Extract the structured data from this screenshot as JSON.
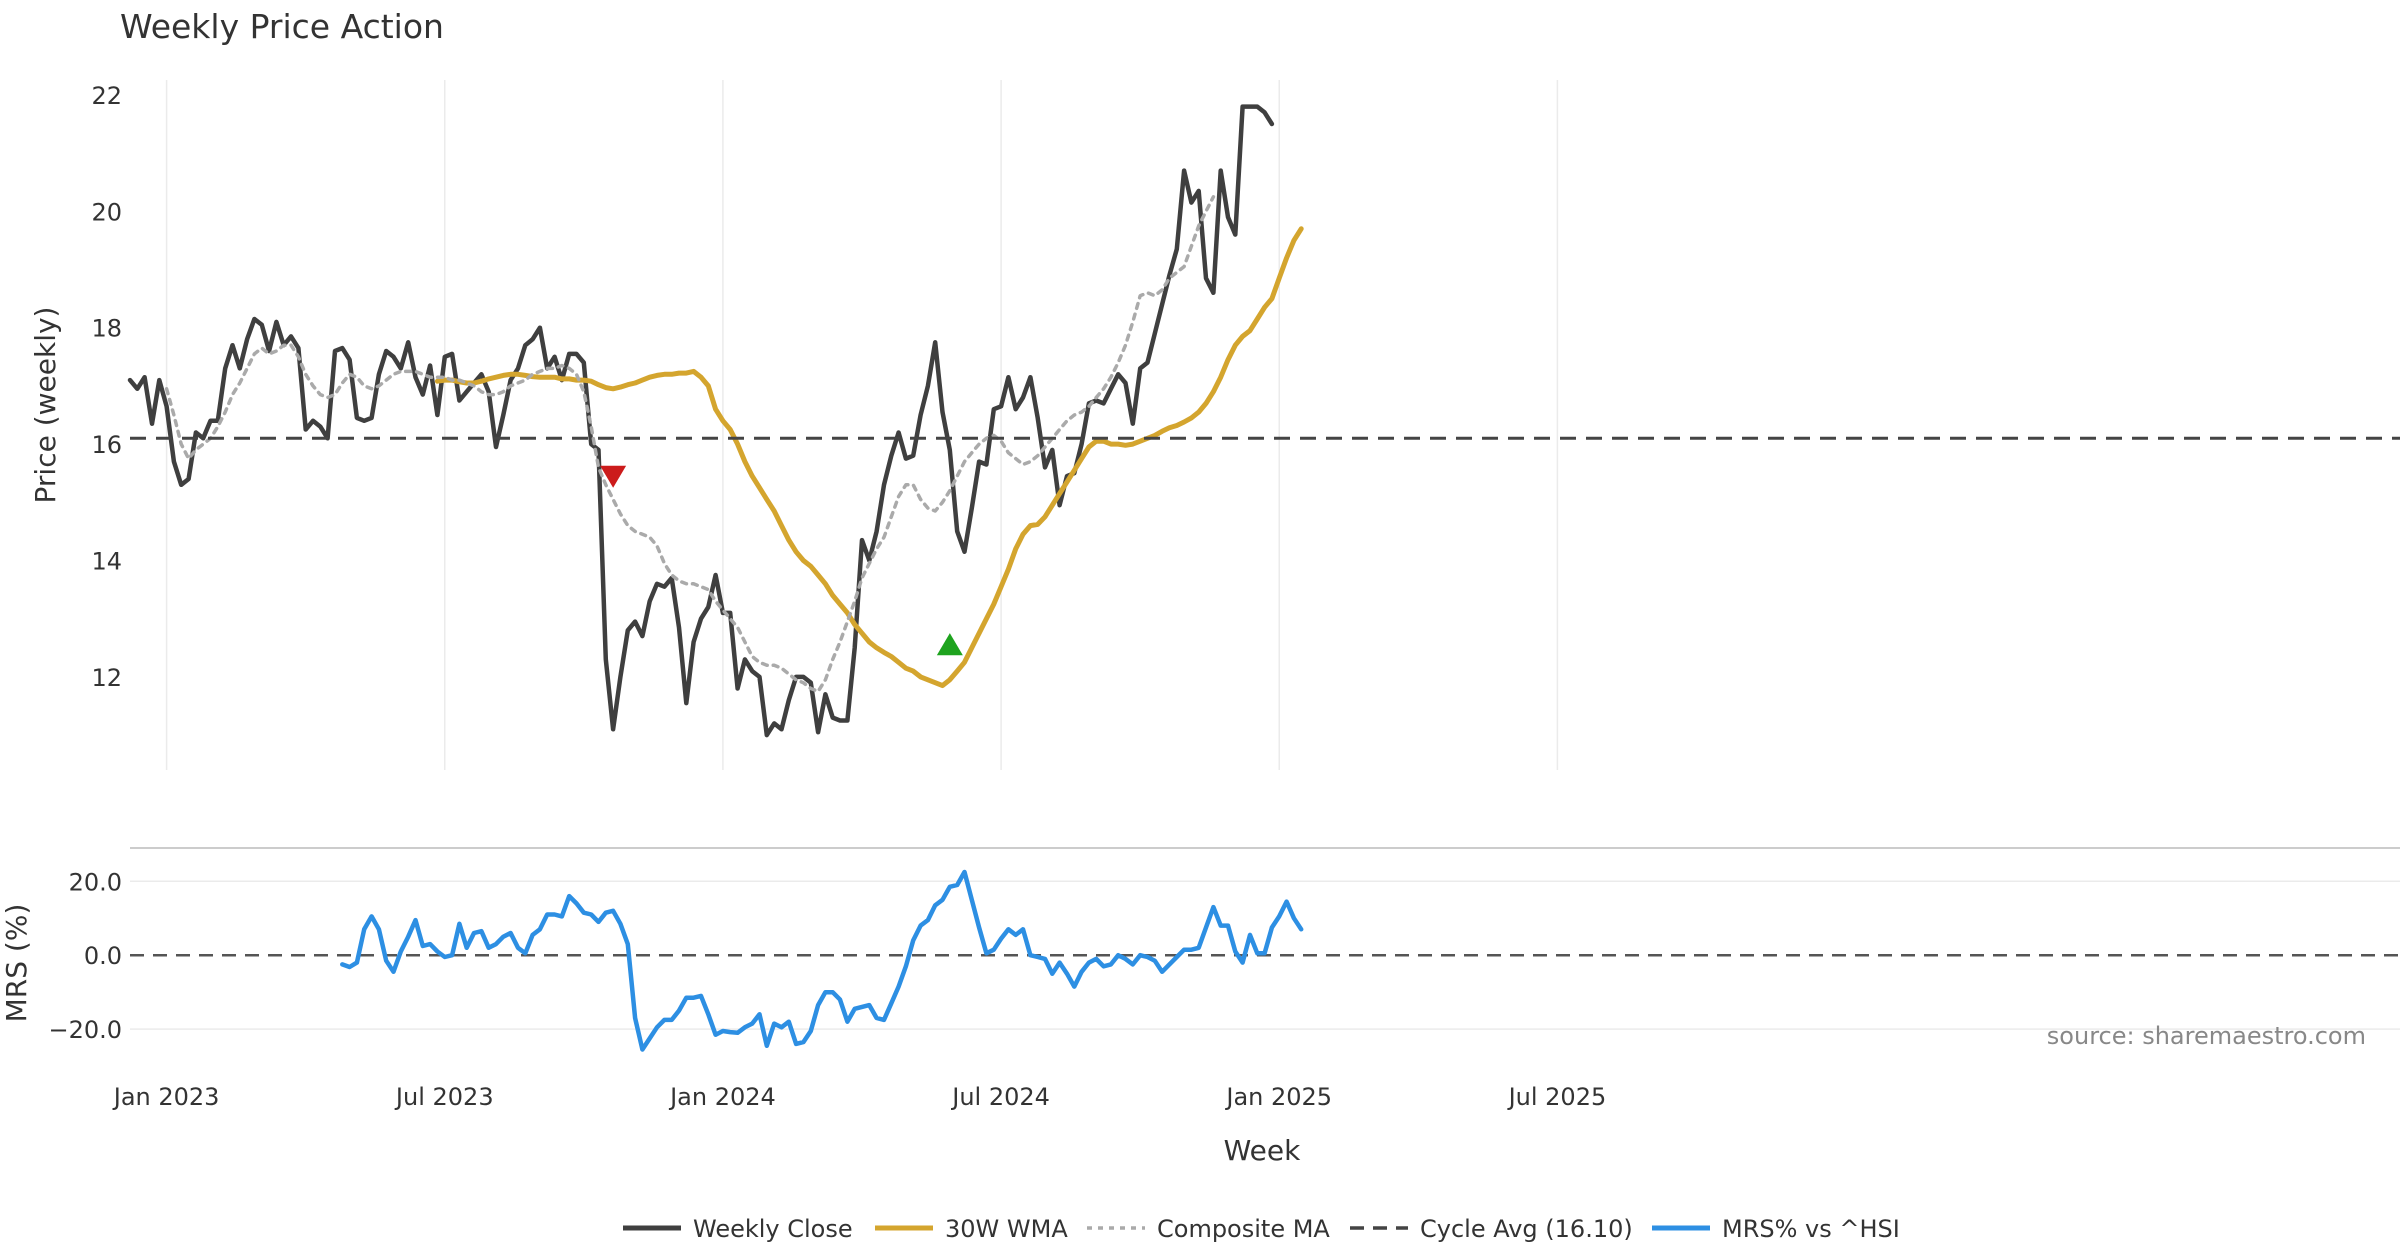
{
  "chart_data": [
    {
      "type": "line",
      "title": "Weekly Price Action",
      "ylabel": "Price (weekly)",
      "ylim": [
        10.4,
        22.6
      ],
      "yticks": [
        12,
        14,
        16,
        18,
        20,
        22
      ],
      "xlabel_ticks": [
        "Jan 2023",
        "Jul 2023",
        "Jan 2024",
        "Jul 2024",
        "Jan 2025",
        "Jul 2025"
      ],
      "grid": "vertical",
      "series": [
        {
          "name": "Weekly Close",
          "color": "#3f3f3f",
          "style": "solid",
          "values": [
            17.1,
            16.95,
            17.15,
            16.35,
            17.1,
            16.65,
            15.7,
            15.3,
            15.4,
            16.2,
            16.1,
            16.4,
            16.4,
            17.3,
            17.7,
            17.3,
            17.8,
            18.15,
            18.05,
            17.6,
            18.1,
            17.7,
            17.85,
            17.65,
            16.25,
            16.4,
            16.3,
            16.1,
            17.6,
            17.65,
            17.45,
            16.45,
            16.4,
            16.45,
            17.2,
            17.6,
            17.5,
            17.3,
            17.75,
            17.15,
            16.85,
            17.35,
            16.5,
            17.5,
            17.55,
            16.75,
            16.9,
            17.05,
            17.2,
            16.9,
            15.95,
            16.5,
            17.1,
            17.3,
            17.7,
            17.8,
            18.0,
            17.3,
            17.5,
            17.1,
            17.55,
            17.55,
            17.4,
            16.0,
            15.9,
            12.3,
            11.1,
            12.0,
            12.8,
            12.95,
            12.7,
            13.3,
            13.6,
            13.55,
            13.7,
            12.85,
            11.55,
            12.6,
            13.0,
            13.2,
            13.75,
            13.1,
            13.1,
            11.8,
            12.3,
            12.1,
            12.0,
            11.0,
            11.2,
            11.1,
            11.6,
            12.0,
            12.0,
            11.9,
            11.05,
            11.7,
            11.3,
            11.25,
            11.25,
            12.5,
            14.35,
            14.0,
            14.5,
            15.3,
            15.8,
            16.2,
            15.75,
            15.8,
            16.5,
            17.0,
            17.75,
            16.55,
            15.9,
            14.5,
            14.15,
            14.9,
            15.7,
            15.65,
            16.6,
            16.65,
            17.15,
            16.6,
            16.8,
            17.15,
            16.45,
            15.6,
            15.9,
            14.95,
            15.45,
            15.5,
            16.0,
            16.7,
            16.75,
            16.7,
            16.95,
            17.2,
            17.05,
            16.35,
            17.3,
            17.4,
            17.9,
            18.4,
            18.9,
            19.35,
            20.7,
            20.15,
            20.35,
            18.85,
            18.6,
            20.7,
            19.9,
            19.6,
            21.8,
            21.8,
            21.8,
            21.7,
            21.5
          ]
        },
        {
          "name": "30W WMA",
          "color": "#d4a52e",
          "style": "solid",
          "start_index": 42,
          "values": [
            17.08,
            17.1,
            17.1,
            17.07,
            17.05,
            17.05,
            17.08,
            17.12,
            17.15,
            17.18,
            17.2,
            17.2,
            17.18,
            17.16,
            17.15,
            17.15,
            17.15,
            17.12,
            17.12,
            17.1,
            17.1,
            17.08,
            17.02,
            16.97,
            16.95,
            16.98,
            17.02,
            17.05,
            17.1,
            17.15,
            17.18,
            17.2,
            17.2,
            17.22,
            17.22,
            17.25,
            17.15,
            17.0,
            16.6,
            16.4,
            16.25,
            16.0,
            15.7,
            15.45,
            15.25,
            15.05,
            14.85,
            14.6,
            14.35,
            14.15,
            14.0,
            13.9,
            13.75,
            13.6,
            13.4,
            13.25,
            13.1,
            12.9,
            12.75,
            12.6,
            12.5,
            12.42,
            12.35,
            12.25,
            12.15,
            12.1,
            12.0,
            11.95,
            11.9,
            11.85,
            11.95,
            12.1,
            12.25,
            12.5,
            12.75,
            13.0,
            13.25,
            13.55,
            13.85,
            14.2,
            14.45,
            14.6,
            14.62,
            14.75,
            14.95,
            15.15,
            15.35,
            15.55,
            15.75,
            15.95,
            16.05,
            16.05,
            16.0,
            16.0,
            15.98,
            16.0,
            16.05,
            16.1,
            16.15,
            16.22,
            16.28,
            16.32,
            16.38,
            16.45,
            16.55,
            16.7,
            16.9,
            17.15,
            17.45,
            17.7,
            17.85,
            17.95,
            18.15,
            18.35,
            18.5,
            18.85,
            19.2,
            19.5,
            19.7
          ]
        },
        {
          "name": "Composite MA",
          "color": "#aaaaaa",
          "style": "dotted",
          "start_index": 5,
          "values": [
            16.95,
            16.5,
            16.0,
            15.75,
            15.9,
            16.0,
            16.1,
            16.3,
            16.55,
            16.85,
            17.05,
            17.3,
            17.55,
            17.65,
            17.55,
            17.6,
            17.7,
            17.7,
            17.5,
            17.2,
            17.0,
            16.85,
            16.8,
            16.85,
            17.05,
            17.2,
            17.15,
            17.0,
            16.95,
            17.0,
            17.1,
            17.2,
            17.25,
            17.25,
            17.25,
            17.2,
            17.15,
            17.15,
            17.15,
            17.1,
            17.1,
            17.05,
            17.0,
            16.9,
            16.85,
            16.85,
            16.9,
            17.0,
            17.05,
            17.1,
            17.2,
            17.25,
            17.3,
            17.3,
            17.35,
            17.3,
            17.2,
            16.9,
            16.3,
            15.6,
            15.3,
            15.05,
            14.8,
            14.6,
            14.5,
            14.45,
            14.4,
            14.25,
            13.95,
            13.75,
            13.65,
            13.6,
            13.6,
            13.55,
            13.5,
            13.3,
            13.15,
            13.0,
            12.85,
            12.6,
            12.35,
            12.25,
            12.2,
            12.2,
            12.15,
            12.05,
            11.95,
            11.9,
            11.8,
            11.75,
            11.95,
            12.3,
            12.6,
            12.95,
            13.3,
            13.7,
            13.95,
            14.2,
            14.4,
            14.75,
            15.1,
            15.3,
            15.3,
            15.05,
            14.9,
            14.85,
            15.0,
            15.2,
            15.45,
            15.7,
            15.85,
            16.0,
            16.1,
            16.15,
            16.05,
            15.85,
            15.75,
            15.65,
            15.7,
            15.8,
            15.95,
            16.1,
            16.25,
            16.4,
            16.5,
            16.55,
            16.65,
            16.8,
            16.95,
            17.15,
            17.4,
            17.7,
            18.1,
            18.55,
            18.6,
            18.55,
            18.65,
            18.85,
            18.95,
            19.05,
            19.4,
            19.75,
            20.0,
            20.25
          ]
        },
        {
          "name": "Cycle Avg (16.10)",
          "color": "#444444",
          "style": "dashed",
          "constant": 16.1
        }
      ],
      "markers": [
        {
          "type": "down-triangle",
          "color": "#cc1b1b",
          "index": 66,
          "y": 15.45
        },
        {
          "type": "up-triangle",
          "color": "#1ea31e",
          "index": 112,
          "y": 12.55
        }
      ]
    },
    {
      "type": "line",
      "ylabel": "MRS (%)",
      "ylim": [
        -27,
        29
      ],
      "yticks": [
        20.0,
        0.0,
        -20.0
      ],
      "ytick_labels": [
        "20.0",
        "0.0",
        "−20.0"
      ],
      "xlabel": "Week",
      "zero_line": true,
      "series": [
        {
          "name": "MRS% vs ^HSI",
          "color": "#2d8fe3",
          "style": "solid",
          "start_index": 29,
          "values": [
            -2.5,
            -3.2,
            -2.0,
            7.0,
            10.5,
            7.0,
            -1.5,
            -4.5,
            1.0,
            5.0,
            9.5,
            2.5,
            3.0,
            1.0,
            -0.5,
            0.0,
            8.5,
            2.0,
            6.0,
            6.5,
            2.0,
            3.0,
            5.0,
            6.0,
            2.0,
            0.5,
            5.5,
            7.0,
            11.0,
            11.0,
            10.5,
            16.0,
            14.0,
            11.5,
            11.0,
            9.0,
            11.5,
            12.0,
            8.5,
            3.0,
            -17.0,
            -25.5,
            -22.5,
            -19.5,
            -17.5,
            -17.5,
            -15.0,
            -11.5,
            -11.5,
            -11.0,
            -16.0,
            -21.5,
            -20.5,
            -20.8,
            -21.0,
            -19.5,
            -18.5,
            -16.0,
            -24.5,
            -18.5,
            -19.5,
            -18.0,
            -24.0,
            -23.5,
            -20.5,
            -13.5,
            -10.0,
            -10.0,
            -12.0,
            -18.0,
            -14.5,
            -14.0,
            -13.5,
            -17.0,
            -17.5,
            -13.0,
            -8.5,
            -3.0,
            4.0,
            8.0,
            9.5,
            13.5,
            15.0,
            18.5,
            19.0,
            22.5,
            15.0,
            7.5,
            0.5,
            1.5,
            4.5,
            7.0,
            5.5,
            7.0,
            0.0,
            -0.5,
            -1.0,
            -5.0,
            -2.0,
            -5.0,
            -8.5,
            -4.5,
            -2.0,
            -1.0,
            -3.0,
            -2.5,
            0.0,
            -1.0,
            -2.5,
            0.0,
            -0.5,
            -1.5,
            -4.5,
            -2.5,
            -0.5,
            1.5,
            1.5,
            2.0,
            7.5,
            13.0,
            8.0,
            8.0,
            1.0,
            -2.0,
            5.5,
            0.5,
            0.5,
            7.5,
            10.5,
            14.5,
            10.0,
            7.0
          ]
        }
      ]
    }
  ],
  "legend": {
    "placement": "bottom-center",
    "entries": [
      {
        "label": "Weekly Close",
        "color": "#3f3f3f",
        "style": "solid"
      },
      {
        "label": "30W WMA",
        "color": "#d4a52e",
        "style": "solid"
      },
      {
        "label": "Composite MA",
        "color": "#aaaaaa",
        "style": "dotted"
      },
      {
        "label": "Cycle Avg (16.10)",
        "color": "#444444",
        "style": "dashed"
      },
      {
        "label": "MRS% vs ^HSI",
        "color": "#2d8fe3",
        "style": "solid"
      }
    ]
  },
  "source": "source: sharemaestro.com"
}
